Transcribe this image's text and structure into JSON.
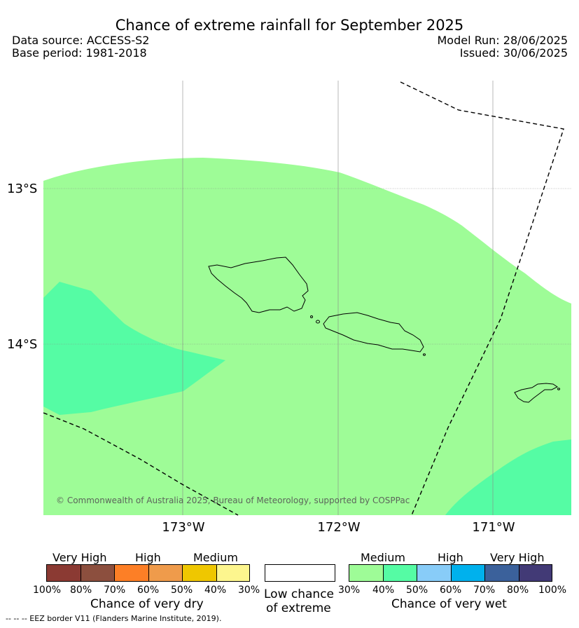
{
  "title": "Chance of extreme rainfall for September 2025",
  "meta": {
    "data_source": "Data source: ACCESS-S2",
    "base_period": "Base period: 1981-2018",
    "model_run": "Model Run: 28/06/2025",
    "issued": "Issued: 30/06/2025"
  },
  "map": {
    "lat_labels": [
      "13°S",
      "14°S"
    ],
    "lon_labels": [
      "173°W",
      "172°W",
      "171°W"
    ],
    "copyright": "© Commonwealth of Australia 2025, Bureau of Meteorology, supported by COSPPac",
    "features": {
      "eez_border": "EEZ border",
      "islands": [
        "Savai'i",
        "Upolu",
        "Tutuila"
      ]
    },
    "colors": {
      "medium_wet": "#9efc97",
      "high_wet_40_50": "#55fca4",
      "land_outline": "#000000"
    }
  },
  "legend": {
    "dry": {
      "categories": [
        "Very High",
        "High",
        "Medium"
      ],
      "ticks": [
        "100%",
        "80%",
        "70%",
        "60%",
        "50%",
        "40%",
        "30%"
      ],
      "caption": "Chance of very dry",
      "colors": [
        "#8b3a33",
        "#8c4f3e",
        "#fd7f26",
        "#ef9b4b",
        "#efc700",
        "#fdf68e"
      ]
    },
    "low": {
      "caption_line1": "Low chance",
      "caption_line2": "of extreme",
      "color": "#ffffff"
    },
    "wet": {
      "categories": [
        "Medium",
        "High",
        "Very High"
      ],
      "ticks": [
        "30%",
        "40%",
        "50%",
        "60%",
        "70%",
        "80%",
        "100%"
      ],
      "caption": "Chance of very wet",
      "colors": [
        "#9efc97",
        "#55fca4",
        "#88ccf8",
        "#00b1ed",
        "#3b619b",
        "#423a76"
      ]
    }
  },
  "footnote": "--  --  -- EEZ border V11 (Flanders Marine Institute, 2019)."
}
